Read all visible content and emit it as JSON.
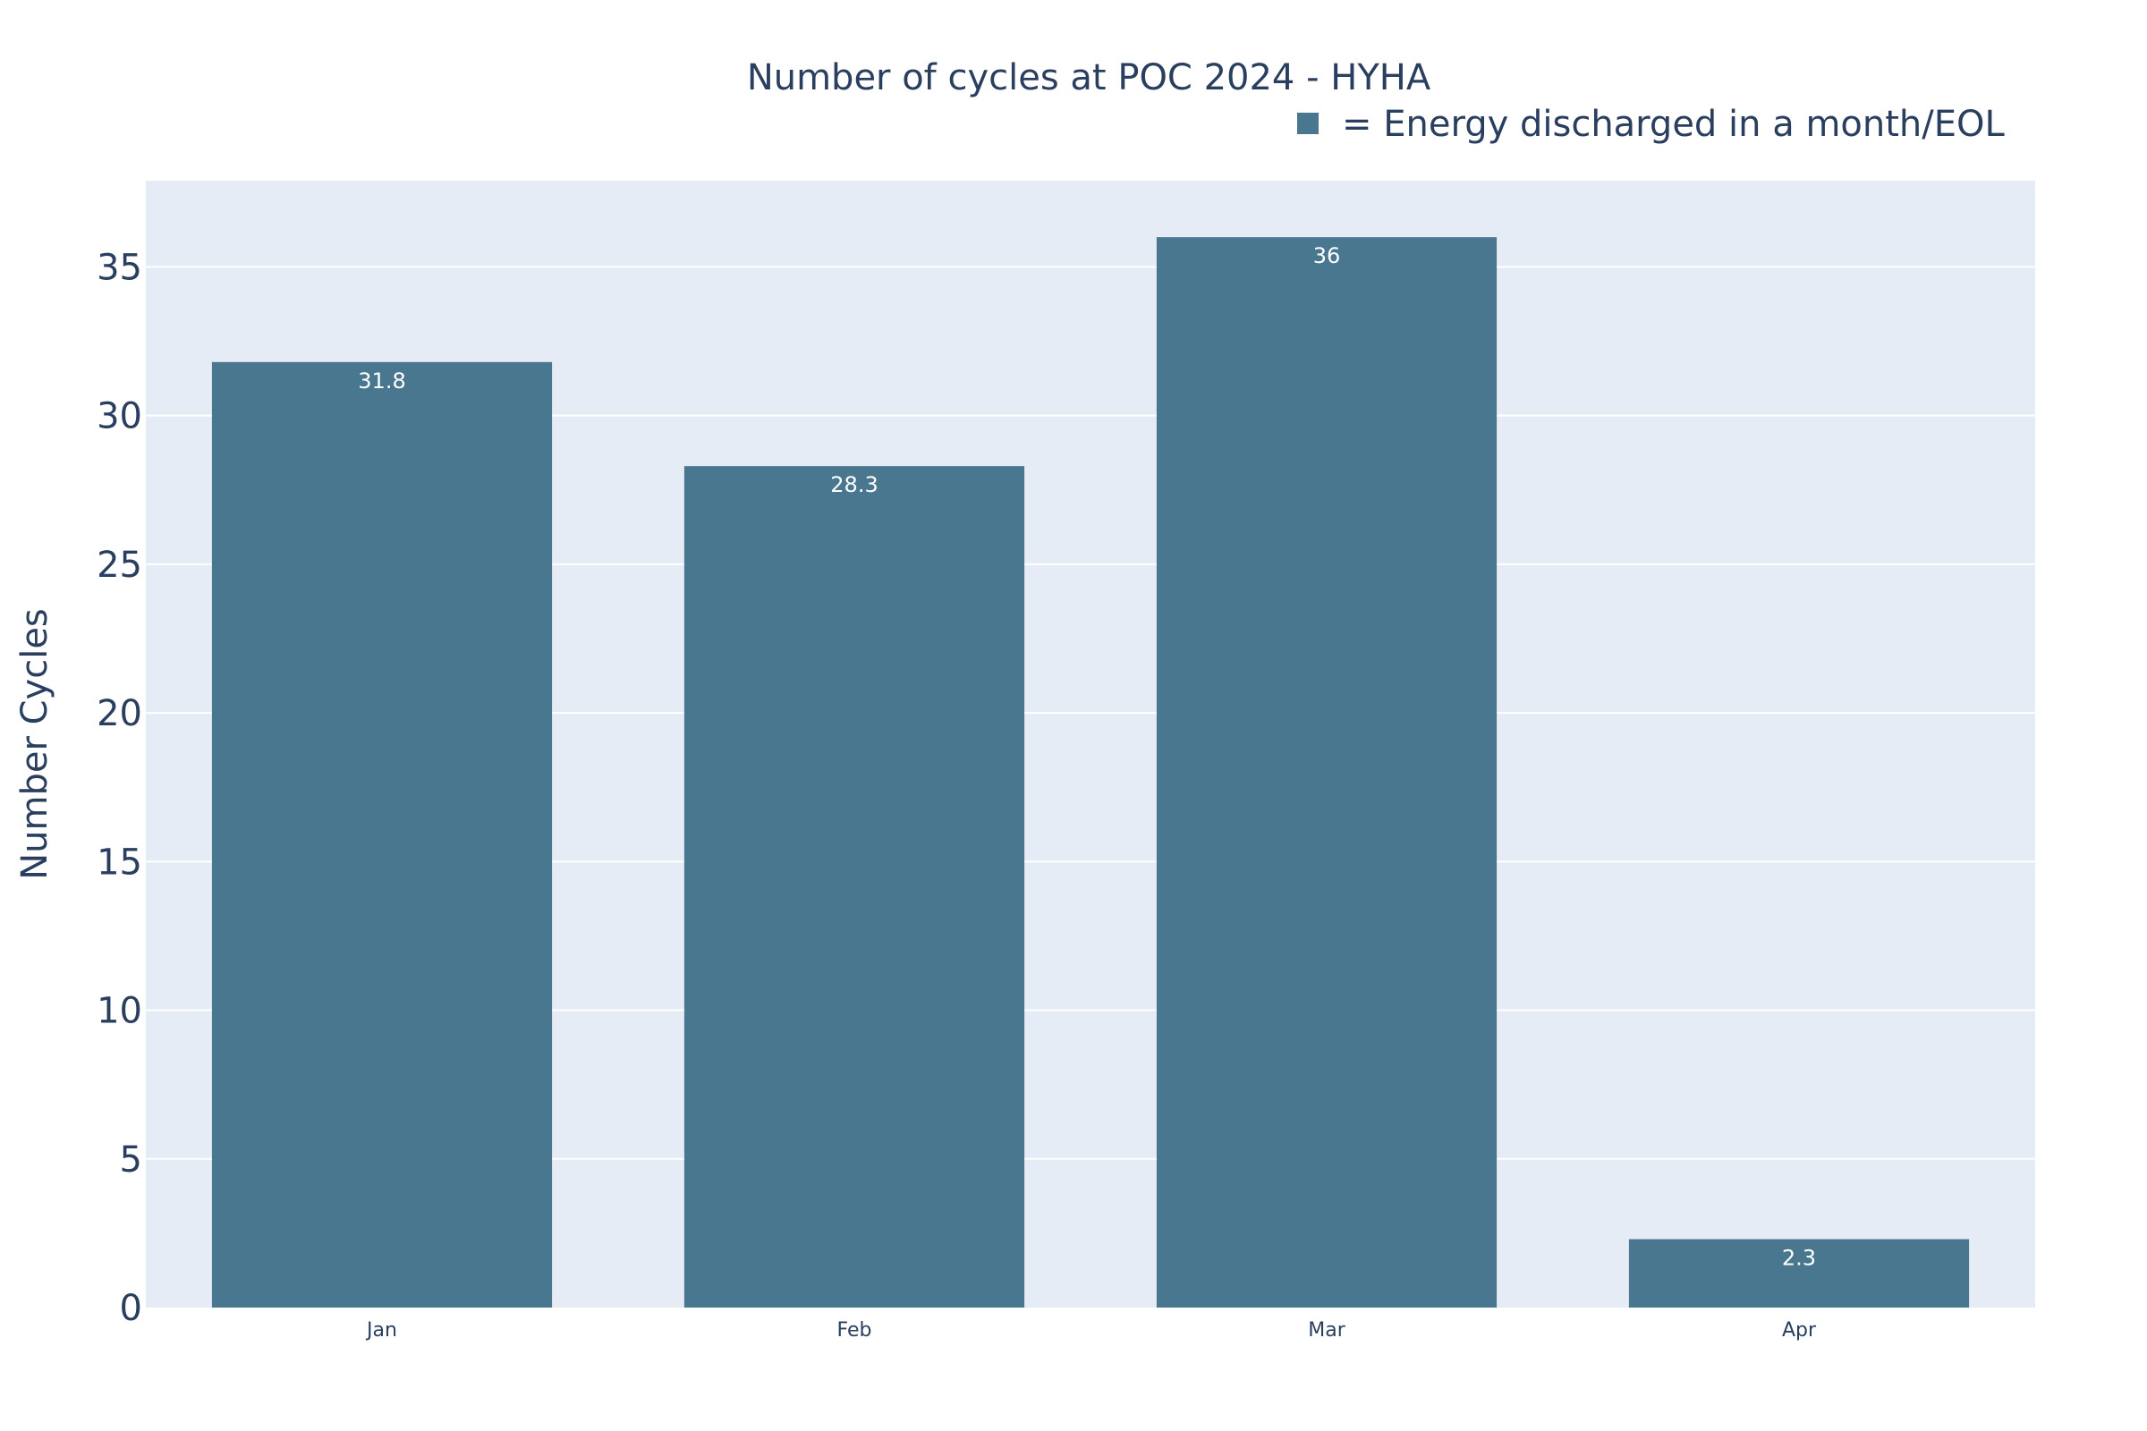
{
  "chart_data": {
    "type": "bar",
    "title": "Number of cycles at POC 2024 - HYHA",
    "xlabel": "",
    "ylabel": "Number Cycles",
    "categories": [
      "Jan",
      "Feb",
      "Mar",
      "Apr"
    ],
    "series": [
      {
        "name": "= Energy discharged in a month/EOL",
        "values": [
          31.8,
          28.3,
          36,
          2.3
        ],
        "labels": [
          "31.8",
          "28.3",
          "36",
          "2.3"
        ]
      }
    ],
    "ylim": [
      0,
      37.9
    ],
    "yticks": [
      0,
      5,
      10,
      15,
      20,
      25,
      30,
      35
    ],
    "grid": true,
    "legend_position": "top-right",
    "colors": {
      "bar": "#48778f",
      "plot_background": "#e5ecf6",
      "gridline": "#ffffff",
      "text": "#2a3f5f",
      "bar_label": "#ffffff"
    }
  }
}
